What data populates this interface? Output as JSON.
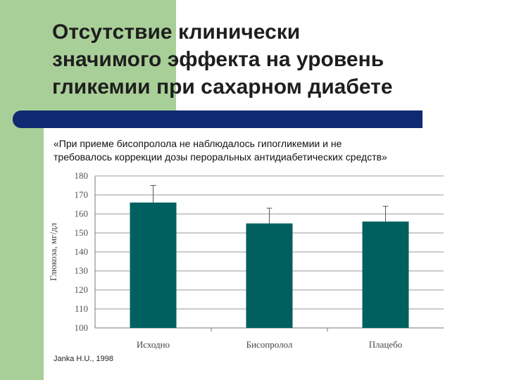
{
  "slide": {
    "title_lines": [
      "Отсутствие клинически",
      "значимого эффекта на уровень",
      "гликемии при сахарном диабете"
    ],
    "quote_lines": [
      "«При приеме бисопролола не наблюдалось гипогликемии и не",
      "требовалось коррекции дозы пероральных антидиабетических средств»"
    ],
    "source": "Janka H.U., 1998",
    "colors": {
      "accent_green": "#a9cf98",
      "divider_blue": "#0f2a70",
      "bar": "#006060"
    }
  },
  "chart_data": {
    "type": "bar",
    "ylabel": "Глюкоза, мг/дл",
    "ylim": [
      100,
      180
    ],
    "yticks": [
      100,
      110,
      120,
      130,
      140,
      150,
      160,
      170,
      180
    ],
    "grid": true,
    "categories": [
      "Исходно",
      "Бисопролол",
      "Плацебо"
    ],
    "values": [
      166,
      155,
      156
    ],
    "error_upper": [
      175,
      163,
      164
    ]
  }
}
